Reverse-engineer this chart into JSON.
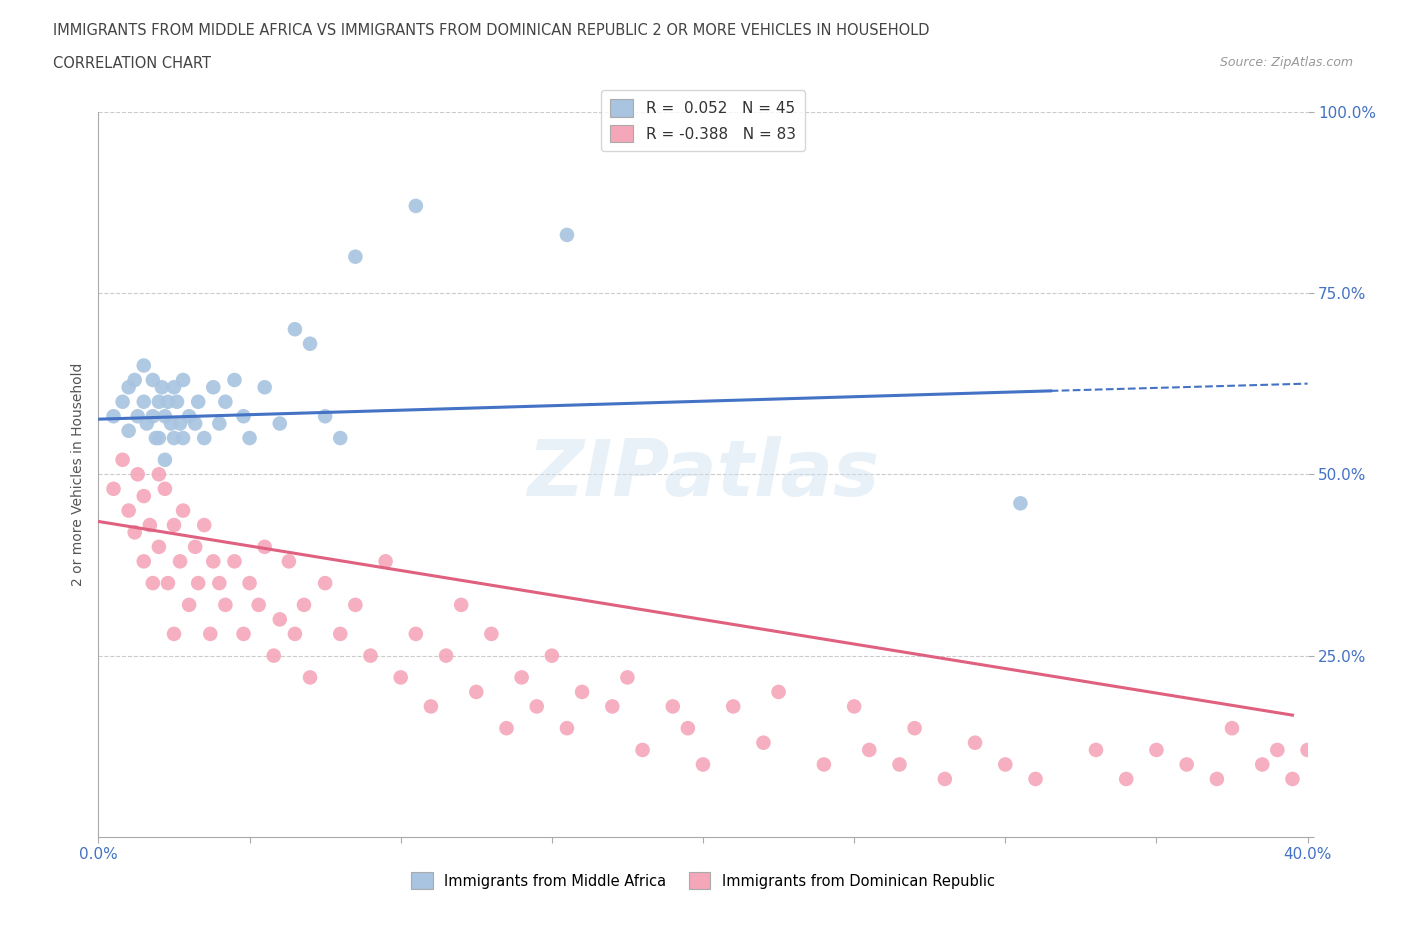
{
  "title_line1": "IMMIGRANTS FROM MIDDLE AFRICA VS IMMIGRANTS FROM DOMINICAN REPUBLIC 2 OR MORE VEHICLES IN HOUSEHOLD",
  "title_line2": "CORRELATION CHART",
  "source_text": "Source: ZipAtlas.com",
  "ylabel": "2 or more Vehicles in Household",
  "x_min": 0.0,
  "x_max": 0.4,
  "y_min": 0.0,
  "y_max": 1.0,
  "x_ticks": [
    0.0,
    0.05,
    0.1,
    0.15,
    0.2,
    0.25,
    0.3,
    0.35,
    0.4
  ],
  "y_ticks": [
    0.0,
    0.25,
    0.5,
    0.75,
    1.0
  ],
  "legend_r1": "R =  0.052",
  "legend_n1": "N = 45",
  "legend_r2": "R = -0.388",
  "legend_n2": "N = 83",
  "color_blue": "#a8c4e0",
  "color_pink": "#f4a7b9",
  "trendline_blue": "#4472c4",
  "trendline_pink": "#e06080",
  "r_value_color": "#4472c4",
  "watermark": "ZIPatlas",
  "blue_trendline_x0": 0.0,
  "blue_trendline_y0": 0.576,
  "blue_trendline_x1": 0.315,
  "blue_trendline_y1": 0.615,
  "blue_trendline_dash_x1": 0.4,
  "blue_trendline_dash_y1": 0.625,
  "pink_trendline_x0": 0.0,
  "pink_trendline_y0": 0.435,
  "pink_trendline_x1": 0.395,
  "pink_trendline_y1": 0.168,
  "scatter_blue_x": [
    0.005,
    0.008,
    0.01,
    0.01,
    0.012,
    0.013,
    0.015,
    0.015,
    0.016,
    0.018,
    0.018,
    0.019,
    0.02,
    0.02,
    0.021,
    0.022,
    0.022,
    0.023,
    0.024,
    0.025,
    0.025,
    0.026,
    0.027,
    0.028,
    0.028,
    0.03,
    0.032,
    0.033,
    0.035,
    0.038,
    0.04,
    0.042,
    0.045,
    0.048,
    0.05,
    0.055,
    0.06,
    0.065,
    0.07,
    0.075,
    0.08,
    0.085,
    0.105,
    0.155,
    0.305
  ],
  "scatter_blue_y": [
    0.58,
    0.6,
    0.62,
    0.56,
    0.63,
    0.58,
    0.65,
    0.6,
    0.57,
    0.63,
    0.58,
    0.55,
    0.6,
    0.55,
    0.62,
    0.58,
    0.52,
    0.6,
    0.57,
    0.62,
    0.55,
    0.6,
    0.57,
    0.55,
    0.63,
    0.58,
    0.57,
    0.6,
    0.55,
    0.62,
    0.57,
    0.6,
    0.63,
    0.58,
    0.55,
    0.62,
    0.57,
    0.7,
    0.68,
    0.58,
    0.55,
    0.8,
    0.87,
    0.83,
    0.46
  ],
  "scatter_pink_x": [
    0.005,
    0.008,
    0.01,
    0.012,
    0.013,
    0.015,
    0.015,
    0.017,
    0.018,
    0.02,
    0.02,
    0.022,
    0.023,
    0.025,
    0.025,
    0.027,
    0.028,
    0.03,
    0.032,
    0.033,
    0.035,
    0.037,
    0.038,
    0.04,
    0.042,
    0.045,
    0.048,
    0.05,
    0.053,
    0.055,
    0.058,
    0.06,
    0.063,
    0.065,
    0.068,
    0.07,
    0.075,
    0.08,
    0.085,
    0.09,
    0.095,
    0.1,
    0.105,
    0.11,
    0.115,
    0.12,
    0.125,
    0.13,
    0.135,
    0.14,
    0.145,
    0.15,
    0.155,
    0.16,
    0.17,
    0.175,
    0.18,
    0.19,
    0.195,
    0.2,
    0.21,
    0.22,
    0.225,
    0.24,
    0.25,
    0.255,
    0.265,
    0.27,
    0.28,
    0.29,
    0.3,
    0.31,
    0.33,
    0.34,
    0.35,
    0.36,
    0.37,
    0.375,
    0.385,
    0.39,
    0.395,
    0.4,
    0.405
  ],
  "scatter_pink_y": [
    0.48,
    0.52,
    0.45,
    0.42,
    0.5,
    0.47,
    0.38,
    0.43,
    0.35,
    0.5,
    0.4,
    0.48,
    0.35,
    0.43,
    0.28,
    0.38,
    0.45,
    0.32,
    0.4,
    0.35,
    0.43,
    0.28,
    0.38,
    0.35,
    0.32,
    0.38,
    0.28,
    0.35,
    0.32,
    0.4,
    0.25,
    0.3,
    0.38,
    0.28,
    0.32,
    0.22,
    0.35,
    0.28,
    0.32,
    0.25,
    0.38,
    0.22,
    0.28,
    0.18,
    0.25,
    0.32,
    0.2,
    0.28,
    0.15,
    0.22,
    0.18,
    0.25,
    0.15,
    0.2,
    0.18,
    0.22,
    0.12,
    0.18,
    0.15,
    0.1,
    0.18,
    0.13,
    0.2,
    0.1,
    0.18,
    0.12,
    0.1,
    0.15,
    0.08,
    0.13,
    0.1,
    0.08,
    0.12,
    0.08,
    0.12,
    0.1,
    0.08,
    0.15,
    0.1,
    0.12,
    0.08,
    0.12,
    0.1
  ]
}
